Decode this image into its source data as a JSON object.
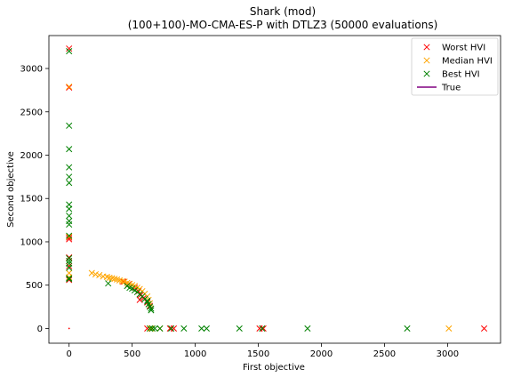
{
  "chart_data": {
    "type": "scatter",
    "title": "Shark (mod)",
    "subtitle": "(100+100)-MO-CMA-ES-P with DTLZ3 (50000 evaluations)",
    "xlabel": "First objective",
    "ylabel": "Second objective",
    "xlim": [
      -160,
      3420
    ],
    "ylim": [
      -170,
      3380
    ],
    "xticks": [
      0,
      500,
      1000,
      1500,
      2000,
      2500,
      3000
    ],
    "yticks": [
      0,
      500,
      1000,
      1500,
      2000,
      2500,
      3000
    ],
    "grid": false,
    "legend": "top-right",
    "series": [
      {
        "name": "Worst HVI",
        "color": "#ff0000",
        "marker": "x",
        "points": [
          [
            0,
            3230
          ],
          [
            0,
            2780
          ],
          [
            0,
            1050
          ],
          [
            0,
            1030
          ],
          [
            0,
            820
          ],
          [
            0,
            720
          ],
          [
            0,
            560
          ],
          [
            620,
            0
          ],
          [
            800,
            0
          ],
          [
            830,
            0
          ],
          [
            1510,
            0
          ],
          [
            1540,
            0
          ],
          [
            3290,
            0
          ],
          [
            430,
            540
          ],
          [
            470,
            510
          ],
          [
            520,
            470
          ],
          [
            550,
            430
          ],
          [
            570,
            390
          ],
          [
            590,
            350
          ],
          [
            620,
            300
          ],
          [
            640,
            260
          ],
          [
            560,
            330
          ]
        ],
        "extra_points": [
          [
            0,
            0
          ]
        ]
      },
      {
        "name": "Median HVI",
        "color": "#ffa500",
        "marker": "x",
        "points": [
          [
            0,
            2790
          ],
          [
            0,
            1060
          ],
          [
            0,
            640
          ],
          [
            0,
            590
          ],
          [
            180,
            640
          ],
          [
            210,
            625
          ],
          [
            240,
            615
          ],
          [
            270,
            600
          ],
          [
            300,
            595
          ],
          [
            320,
            585
          ],
          [
            340,
            580
          ],
          [
            360,
            572
          ],
          [
            380,
            565
          ],
          [
            400,
            555
          ],
          [
            420,
            545
          ],
          [
            440,
            540
          ],
          [
            460,
            525
          ],
          [
            480,
            515
          ],
          [
            500,
            500
          ],
          [
            520,
            490
          ],
          [
            540,
            470
          ],
          [
            560,
            455
          ],
          [
            580,
            430
          ],
          [
            600,
            400
          ],
          [
            620,
            370
          ],
          [
            630,
            330
          ],
          [
            640,
            290
          ],
          [
            650,
            0
          ],
          [
            720,
            0
          ],
          [
            3010,
            0
          ]
        ]
      },
      {
        "name": "Best HVI",
        "color": "#008000",
        "marker": "x",
        "points": [
          [
            0,
            3200
          ],
          [
            0,
            2340
          ],
          [
            0,
            2070
          ],
          [
            0,
            1860
          ],
          [
            0,
            1750
          ],
          [
            0,
            1680
          ],
          [
            0,
            1430
          ],
          [
            0,
            1380
          ],
          [
            0,
            1300
          ],
          [
            0,
            1240
          ],
          [
            0,
            1200
          ],
          [
            0,
            1070
          ],
          [
            0,
            810
          ],
          [
            0,
            780
          ],
          [
            0,
            750
          ],
          [
            0,
            700
          ],
          [
            0,
            580
          ],
          [
            0,
            570
          ],
          [
            310,
            520
          ],
          [
            460,
            490
          ],
          [
            480,
            470
          ],
          [
            500,
            460
          ],
          [
            520,
            440
          ],
          [
            540,
            420
          ],
          [
            560,
            395
          ],
          [
            580,
            370
          ],
          [
            600,
            340
          ],
          [
            620,
            310
          ],
          [
            630,
            280
          ],
          [
            640,
            250
          ],
          [
            650,
            230
          ],
          [
            650,
            210
          ],
          [
            620,
            320
          ],
          [
            640,
            0
          ],
          [
            660,
            0
          ],
          [
            680,
            0
          ],
          [
            720,
            0
          ],
          [
            810,
            0
          ],
          [
            910,
            0
          ],
          [
            1050,
            0
          ],
          [
            1090,
            0
          ],
          [
            1350,
            0
          ],
          [
            1530,
            0
          ],
          [
            1890,
            0
          ],
          [
            2680,
            0
          ]
        ]
      },
      {
        "name": "True",
        "color": "#800080",
        "marker": "line",
        "points": []
      }
    ]
  }
}
